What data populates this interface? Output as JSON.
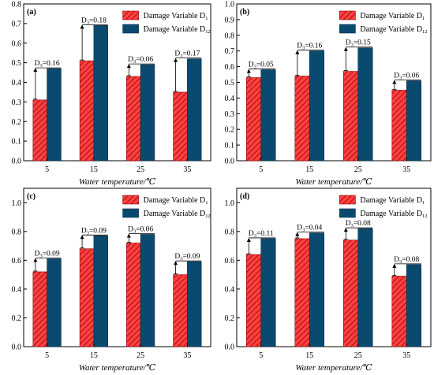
{
  "chart_data": [
    {
      "type": "bar",
      "panel_label": "(a)",
      "categories": [
        "5",
        "15",
        "25",
        "35"
      ],
      "xlabel": "Water temperature/℃",
      "ylabel": "",
      "ylim": [
        0,
        0.8
      ],
      "yticks": [
        "0.0",
        "0.1",
        "0.2",
        "0.3",
        "0.4",
        "0.5",
        "0.6",
        "0.7",
        "0.8"
      ],
      "series": [
        {
          "name": "Damage Variable D",
          "name_sub": "1",
          "values": [
            0.31,
            0.51,
            0.43,
            0.35
          ]
        },
        {
          "name": "Damage Variable D",
          "name_sub": "12",
          "values": [
            0.47,
            0.69,
            0.49,
            0.52
          ]
        }
      ],
      "annotations": [
        {
          "prefix": "D",
          "sub": "3",
          "text": "=0.16",
          "value": 0.16
        },
        {
          "prefix": "D",
          "sub": "3",
          "text": "=0.18",
          "value": 0.18
        },
        {
          "prefix": "D",
          "sub": "3",
          "text": "=0.06",
          "value": 0.06
        },
        {
          "prefix": "D",
          "sub": "3",
          "text": "=0.17",
          "value": 0.17
        }
      ],
      "legend": "top-right",
      "grid": false
    },
    {
      "type": "bar",
      "panel_label": "(b)",
      "categories": [
        "5",
        "15",
        "25",
        "35"
      ],
      "xlabel": "Water temperature/℃",
      "ylabel": "",
      "ylim": [
        0,
        1.0
      ],
      "yticks": [
        "0.0",
        "0.1",
        "0.2",
        "0.3",
        "0.4",
        "0.5",
        "0.6",
        "0.7",
        "0.8",
        "0.9",
        "1.0"
      ],
      "series": [
        {
          "name": "Damage Variable D",
          "name_sub": "1",
          "values": [
            0.53,
            0.54,
            0.57,
            0.45
          ]
        },
        {
          "name": "Damage Variable D",
          "name_sub": "12",
          "values": [
            0.58,
            0.7,
            0.72,
            0.51
          ]
        }
      ],
      "annotations": [
        {
          "prefix": "D",
          "sub": "3",
          "text": "=0.05",
          "value": 0.05
        },
        {
          "prefix": "D",
          "sub": "3",
          "text": "=0.16",
          "value": 0.16
        },
        {
          "prefix": "D",
          "sub": "3",
          "text": "=0.15",
          "value": 0.15
        },
        {
          "prefix": "D",
          "sub": "3",
          "text": "=0.06",
          "value": 0.06
        }
      ],
      "legend": "top-right",
      "grid": false
    },
    {
      "type": "bar",
      "panel_label": "(c)",
      "categories": [
        "5",
        "15",
        "25",
        "35"
      ],
      "xlabel": "Water temperature/℃",
      "ylabel": "",
      "ylim": [
        0,
        1.1
      ],
      "yticks": [
        "0.0",
        "0.2",
        "0.4",
        "0.6",
        "0.8",
        "1.0"
      ],
      "series": [
        {
          "name": "Damage Variable D",
          "name_sub": "1",
          "values": [
            0.52,
            0.68,
            0.72,
            0.5
          ]
        },
        {
          "name": "Damage Variable D",
          "name_sub": "12",
          "values": [
            0.61,
            0.77,
            0.78,
            0.59
          ]
        }
      ],
      "annotations": [
        {
          "prefix": "D",
          "sub": "3",
          "text": "=0.09",
          "value": 0.09
        },
        {
          "prefix": "D",
          "sub": "3",
          "text": "=0.09",
          "value": 0.09
        },
        {
          "prefix": "D",
          "sub": "3",
          "text": "=0.06",
          "value": 0.06
        },
        {
          "prefix": "D",
          "sub": "3",
          "text": "=0.09",
          "value": 0.09
        }
      ],
      "legend": "top-right",
      "grid": false
    },
    {
      "type": "bar",
      "panel_label": "(d)",
      "categories": [
        "5",
        "15",
        "25",
        "35"
      ],
      "xlabel": "Water temperature/℃",
      "ylabel": "",
      "ylim": [
        0,
        1.1
      ],
      "yticks": [
        "0.0",
        "0.2",
        "0.4",
        "0.6",
        "0.8",
        "1.0"
      ],
      "series": [
        {
          "name": "Damage Variable D",
          "name_sub": "1",
          "values": [
            0.64,
            0.75,
            0.74,
            0.49
          ]
        },
        {
          "name": "Damage Variable D",
          "name_sub": "12",
          "values": [
            0.75,
            0.79,
            0.82,
            0.57
          ]
        }
      ],
      "annotations": [
        {
          "prefix": "D",
          "sub": "3",
          "text": "=0.11",
          "value": 0.11
        },
        {
          "prefix": "D",
          "sub": "3",
          "text": "=0.04",
          "value": 0.04
        },
        {
          "prefix": "D",
          "sub": "3",
          "text": "=0.08",
          "value": 0.08
        },
        {
          "prefix": "D",
          "sub": "3",
          "text": "=0.08",
          "value": 0.08
        }
      ],
      "legend": "top-right",
      "grid": false
    }
  ],
  "colors": {
    "d1_fill": "#ff4040",
    "d1_hatch": "#8b0000",
    "d12_fill": "#0b4a6f",
    "axis": "#000000"
  }
}
